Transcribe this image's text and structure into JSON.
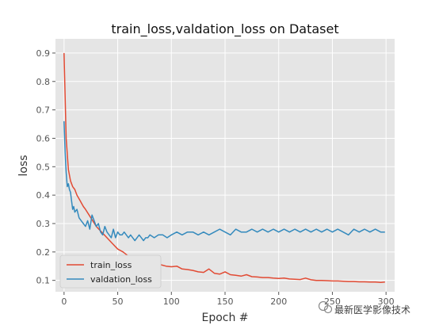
{
  "chart_data": {
    "type": "line",
    "title": "train_loss,valdation_loss on Dataset",
    "xlabel": "Epoch #",
    "ylabel": "loss",
    "xlim": [
      -8,
      308
    ],
    "ylim": [
      0.06,
      0.95
    ],
    "xticks": [
      0,
      50,
      100,
      150,
      200,
      250,
      300
    ],
    "yticks": [
      0.1,
      0.2,
      0.3,
      0.4,
      0.5,
      0.6,
      0.7,
      0.8,
      0.9
    ],
    "grid": true,
    "legend_position": "lower-left",
    "series": [
      {
        "name": "train_loss",
        "color": "#E24A33",
        "x": [
          0,
          2,
          4,
          6,
          8,
          10,
          12,
          15,
          18,
          20,
          25,
          30,
          35,
          40,
          45,
          50,
          55,
          60,
          65,
          70,
          75,
          80,
          85,
          90,
          95,
          100,
          105,
          110,
          115,
          120,
          125,
          130,
          135,
          140,
          145,
          150,
          155,
          160,
          165,
          170,
          175,
          180,
          185,
          190,
          195,
          200,
          205,
          210,
          215,
          220,
          225,
          230,
          235,
          240,
          245,
          250,
          255,
          260,
          265,
          270,
          275,
          280,
          285,
          290,
          295,
          299
        ],
        "y": [
          0.9,
          0.6,
          0.49,
          0.45,
          0.43,
          0.42,
          0.4,
          0.38,
          0.36,
          0.35,
          0.32,
          0.29,
          0.27,
          0.25,
          0.23,
          0.21,
          0.2,
          0.185,
          0.175,
          0.17,
          0.165,
          0.16,
          0.16,
          0.155,
          0.15,
          0.148,
          0.15,
          0.14,
          0.138,
          0.135,
          0.13,
          0.128,
          0.14,
          0.125,
          0.122,
          0.13,
          0.12,
          0.118,
          0.115,
          0.12,
          0.113,
          0.112,
          0.11,
          0.11,
          0.108,
          0.107,
          0.108,
          0.105,
          0.104,
          0.103,
          0.108,
          0.102,
          0.1,
          0.1,
          0.099,
          0.098,
          0.098,
          0.097,
          0.096,
          0.096,
          0.095,
          0.095,
          0.094,
          0.094,
          0.093,
          0.094
        ]
      },
      {
        "name": "valdation_loss",
        "color": "#348ABD",
        "x": [
          0,
          1,
          2,
          3,
          4,
          5,
          6,
          7,
          8,
          9,
          10,
          12,
          14,
          16,
          18,
          20,
          22,
          24,
          26,
          28,
          30,
          32,
          34,
          36,
          38,
          40,
          42,
          44,
          46,
          48,
          50,
          52,
          54,
          56,
          58,
          60,
          62,
          64,
          66,
          68,
          70,
          72,
          74,
          76,
          78,
          80,
          84,
          88,
          92,
          96,
          100,
          105,
          110,
          115,
          120,
          125,
          130,
          135,
          140,
          145,
          150,
          155,
          160,
          165,
          170,
          175,
          180,
          185,
          190,
          195,
          200,
          205,
          210,
          215,
          220,
          225,
          230,
          235,
          240,
          245,
          250,
          255,
          260,
          265,
          270,
          275,
          280,
          285,
          290,
          295,
          299
        ],
        "y": [
          0.66,
          0.55,
          0.48,
          0.43,
          0.44,
          0.42,
          0.41,
          0.38,
          0.35,
          0.36,
          0.34,
          0.35,
          0.32,
          0.31,
          0.3,
          0.29,
          0.31,
          0.28,
          0.33,
          0.31,
          0.29,
          0.3,
          0.27,
          0.26,
          0.29,
          0.27,
          0.26,
          0.25,
          0.28,
          0.25,
          0.27,
          0.26,
          0.26,
          0.27,
          0.26,
          0.25,
          0.26,
          0.25,
          0.24,
          0.25,
          0.26,
          0.25,
          0.24,
          0.25,
          0.25,
          0.26,
          0.25,
          0.26,
          0.26,
          0.25,
          0.26,
          0.27,
          0.26,
          0.27,
          0.27,
          0.26,
          0.27,
          0.26,
          0.27,
          0.28,
          0.27,
          0.26,
          0.28,
          0.27,
          0.27,
          0.28,
          0.27,
          0.28,
          0.27,
          0.28,
          0.27,
          0.28,
          0.27,
          0.28,
          0.27,
          0.28,
          0.27,
          0.28,
          0.27,
          0.28,
          0.27,
          0.28,
          0.27,
          0.26,
          0.28,
          0.27,
          0.28,
          0.27,
          0.28,
          0.27,
          0.27
        ]
      }
    ]
  },
  "watermark": {
    "text": "最新医学影像技术"
  }
}
